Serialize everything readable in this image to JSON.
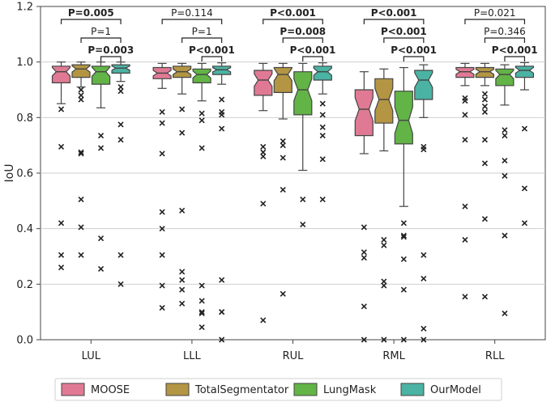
{
  "chart_data": {
    "type": "box",
    "ylabel": "IoU",
    "xlabel": "",
    "ylim": [
      0,
      1.2
    ],
    "yticks": [
      0.0,
      0.2,
      0.4,
      0.6,
      0.8,
      1.0,
      1.2
    ],
    "ytick_labels": [
      "0.0",
      "0.2",
      "0.4",
      "0.6",
      "0.8",
      "1.0",
      "1.2"
    ],
    "grid": "horizontal",
    "legend_position": "bottom",
    "categories": [
      "LUL",
      "LLL",
      "RUL",
      "RML",
      "RLL"
    ],
    "series": [
      {
        "name": "MOOSE",
        "color": "#e07a94",
        "boxes": [
          {
            "whislo": 0.85,
            "q1": 0.925,
            "med": 0.965,
            "q3": 0.985,
            "whishi": 1.0,
            "fliers": [
              0.83,
              0.695,
              0.42,
              0.305,
              0.26
            ]
          },
          {
            "whislo": 0.905,
            "q1": 0.94,
            "med": 0.96,
            "q3": 0.98,
            "whishi": 0.995,
            "fliers": [
              0.82,
              0.78,
              0.67,
              0.46,
              0.4,
              0.305,
              0.195,
              0.115
            ]
          },
          {
            "whislo": 0.825,
            "q1": 0.88,
            "med": 0.935,
            "q3": 0.97,
            "whishi": 0.995,
            "fliers": [
              0.695,
              0.675,
              0.66,
              0.49,
              0.07
            ]
          },
          {
            "whislo": 0.67,
            "q1": 0.735,
            "med": 0.83,
            "q3": 0.9,
            "whishi": 0.965,
            "fliers": [
              0.405,
              0.315,
              0.295,
              0.12,
              0.0
            ]
          },
          {
            "whislo": 0.915,
            "q1": 0.945,
            "med": 0.965,
            "q3": 0.98,
            "whishi": 0.995,
            "fliers": [
              0.87,
              0.86,
              0.81,
              0.72,
              0.48,
              0.36,
              0.155
            ]
          }
        ]
      },
      {
        "name": "TotalSegmentator",
        "color": "#b39543",
        "boxes": [
          {
            "whislo": 0.91,
            "q1": 0.945,
            "med": 0.975,
            "q3": 0.99,
            "whishi": 1.0,
            "fliers": [
              0.9,
              0.88,
              0.865,
              0.675,
              0.67,
              0.505,
              0.405,
              0.305
            ]
          },
          {
            "whislo": 0.885,
            "q1": 0.945,
            "med": 0.965,
            "q3": 0.985,
            "whishi": 0.995,
            "fliers": [
              0.83,
              0.745,
              0.465,
              0.245,
              0.215,
              0.18,
              0.13
            ]
          },
          {
            "whislo": 0.795,
            "q1": 0.89,
            "med": 0.955,
            "q3": 0.98,
            "whishi": 0.995,
            "fliers": [
              0.715,
              0.7,
              0.655,
              0.54,
              0.165
            ]
          },
          {
            "whislo": 0.68,
            "q1": 0.78,
            "med": 0.865,
            "q3": 0.94,
            "whishi": 0.975,
            "fliers": [
              0.36,
              0.34,
              0.21,
              0.195,
              0.0
            ]
          },
          {
            "whislo": 0.915,
            "q1": 0.945,
            "med": 0.965,
            "q3": 0.98,
            "whishi": 0.995,
            "fliers": [
              0.885,
              0.865,
              0.84,
              0.82,
              0.72,
              0.635,
              0.435,
              0.155
            ]
          }
        ]
      },
      {
        "name": "LungMask",
        "color": "#62b446",
        "boxes": [
          {
            "whislo": 0.835,
            "q1": 0.92,
            "med": 0.965,
            "q3": 0.985,
            "whishi": 1.0,
            "fliers": [
              0.735,
              0.69,
              0.365,
              0.255
            ]
          },
          {
            "whislo": 0.86,
            "q1": 0.925,
            "med": 0.955,
            "q3": 0.975,
            "whishi": 0.995,
            "fliers": [
              0.815,
              0.79,
              0.69,
              0.195,
              0.14,
              0.1,
              0.095,
              0.045
            ]
          },
          {
            "whislo": 0.61,
            "q1": 0.81,
            "med": 0.9,
            "q3": 0.965,
            "whishi": 0.995,
            "fliers": [
              0.505,
              0.415
            ]
          },
          {
            "whislo": 0.48,
            "q1": 0.705,
            "med": 0.79,
            "q3": 0.895,
            "whishi": 0.98,
            "fliers": [
              0.42,
              0.375,
              0.37,
              0.29,
              0.18,
              0.0
            ]
          },
          {
            "whislo": 0.845,
            "q1": 0.915,
            "med": 0.955,
            "q3": 0.975,
            "whishi": 0.99,
            "fliers": [
              0.755,
              0.735,
              0.645,
              0.59,
              0.375,
              0.095
            ]
          }
        ]
      },
      {
        "name": "OurModel",
        "color": "#4bb3a3",
        "boxes": [
          {
            "whislo": 0.93,
            "q1": 0.96,
            "med": 0.978,
            "q3": 0.99,
            "whishi": 1.0,
            "fliers": [
              0.91,
              0.895,
              0.775,
              0.72,
              0.305,
              0.2
            ]
          },
          {
            "whislo": 0.92,
            "q1": 0.955,
            "med": 0.972,
            "q3": 0.985,
            "whishi": 0.997,
            "fliers": [
              0.865,
              0.82,
              0.81,
              0.76,
              0.215,
              0.1,
              0.1,
              0.0
            ]
          },
          {
            "whislo": 0.885,
            "q1": 0.935,
            "med": 0.965,
            "q3": 0.985,
            "whishi": 0.997,
            "fliers": [
              0.85,
              0.81,
              0.765,
              0.735,
              0.65,
              0.505
            ]
          },
          {
            "whislo": 0.8,
            "q1": 0.865,
            "med": 0.935,
            "q3": 0.97,
            "whishi": 0.99,
            "fliers": [
              0.695,
              0.685,
              0.305,
              0.22,
              0.04,
              0.0
            ]
          },
          {
            "whislo": 0.9,
            "q1": 0.945,
            "med": 0.97,
            "q3": 0.985,
            "whishi": 0.998,
            "fliers": [
              0.76,
              0.545,
              0.42
            ]
          }
        ]
      }
    ],
    "annotations": [
      {
        "category": "LUL",
        "from": 0,
        "to": 3,
        "level": 3,
        "label": "P=0.005",
        "bold": true
      },
      {
        "category": "LUL",
        "from": 1,
        "to": 3,
        "level": 2,
        "label": "P=1",
        "bold": false
      },
      {
        "category": "LUL",
        "from": 2,
        "to": 3,
        "level": 1,
        "label": "P=0.003",
        "bold": true
      },
      {
        "category": "LLL",
        "from": 0,
        "to": 3,
        "level": 3,
        "label": "P=0.114",
        "bold": false
      },
      {
        "category": "LLL",
        "from": 1,
        "to": 3,
        "level": 2,
        "label": "P=1",
        "bold": false
      },
      {
        "category": "LLL",
        "from": 2,
        "to": 3,
        "level": 1,
        "label": "P<0.001",
        "bold": true
      },
      {
        "category": "RUL",
        "from": 0,
        "to": 3,
        "level": 3,
        "label": "P<0.001",
        "bold": true
      },
      {
        "category": "RUL",
        "from": 1,
        "to": 3,
        "level": 2,
        "label": "P=0.008",
        "bold": true
      },
      {
        "category": "RUL",
        "from": 2,
        "to": 3,
        "level": 1,
        "label": "P<0.001",
        "bold": true
      },
      {
        "category": "RML",
        "from": 0,
        "to": 3,
        "level": 3,
        "label": "P<0.001",
        "bold": true
      },
      {
        "category": "RML",
        "from": 1,
        "to": 3,
        "level": 2,
        "label": "P<0.001",
        "bold": true
      },
      {
        "category": "RML",
        "from": 2,
        "to": 3,
        "level": 1,
        "label": "P<0.001",
        "bold": true
      },
      {
        "category": "RLL",
        "from": 0,
        "to": 3,
        "level": 3,
        "label": "P=0.021",
        "bold": false
      },
      {
        "category": "RLL",
        "from": 1,
        "to": 3,
        "level": 2,
        "label": "P=0.346",
        "bold": false
      },
      {
        "category": "RLL",
        "from": 2,
        "to": 3,
        "level": 1,
        "label": "P<0.001",
        "bold": true
      }
    ]
  }
}
